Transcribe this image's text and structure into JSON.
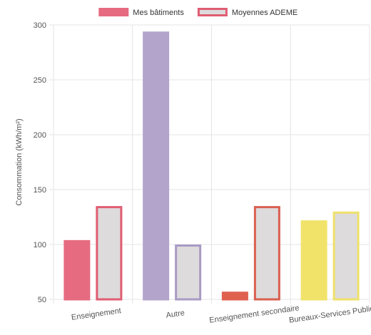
{
  "chart_data": {
    "type": "bar",
    "categories": [
      "Enseignement",
      "Autre",
      "Enseignement secondaire",
      "Bureaux-Services Publics"
    ],
    "series": [
      {
        "name": "Mes bâtiments",
        "values": [
          104,
          294,
          57,
          122
        ],
        "fill_colors": [
          "#e66b80",
          "#b3a4cb",
          "#e06050",
          "#f1e36a"
        ],
        "stroke_colors": [
          "#e66b80",
          "#b3a4cb",
          "#e06050",
          "#f1e36a"
        ]
      },
      {
        "name": "Moyennes ADEME",
        "values": [
          135,
          100,
          135,
          130
        ],
        "fill_colors": [
          "#dddbdc",
          "#dddbdc",
          "#dddbdc",
          "#dddbdc"
        ],
        "stroke_colors": [
          "#e05d72",
          "#a99bc4",
          "#d96050",
          "#efe06a"
        ]
      }
    ],
    "legend": {
      "position": "top",
      "items": [
        {
          "label": "Mes bâtiments",
          "fill": "#e66b80",
          "stroke": "#e66b80"
        },
        {
          "label": "Moyennes ADEME",
          "fill": "#dddbdc",
          "stroke": "#e05d72"
        }
      ]
    },
    "ylabel": "Consommation (kWh/m²)",
    "xlabel": "",
    "ylim": [
      50,
      300
    ],
    "yticks": [
      50,
      100,
      150,
      200,
      250,
      300
    ],
    "grid": true,
    "colors": {
      "grid": "#e4e4e4",
      "axis_text": "#555555"
    }
  }
}
